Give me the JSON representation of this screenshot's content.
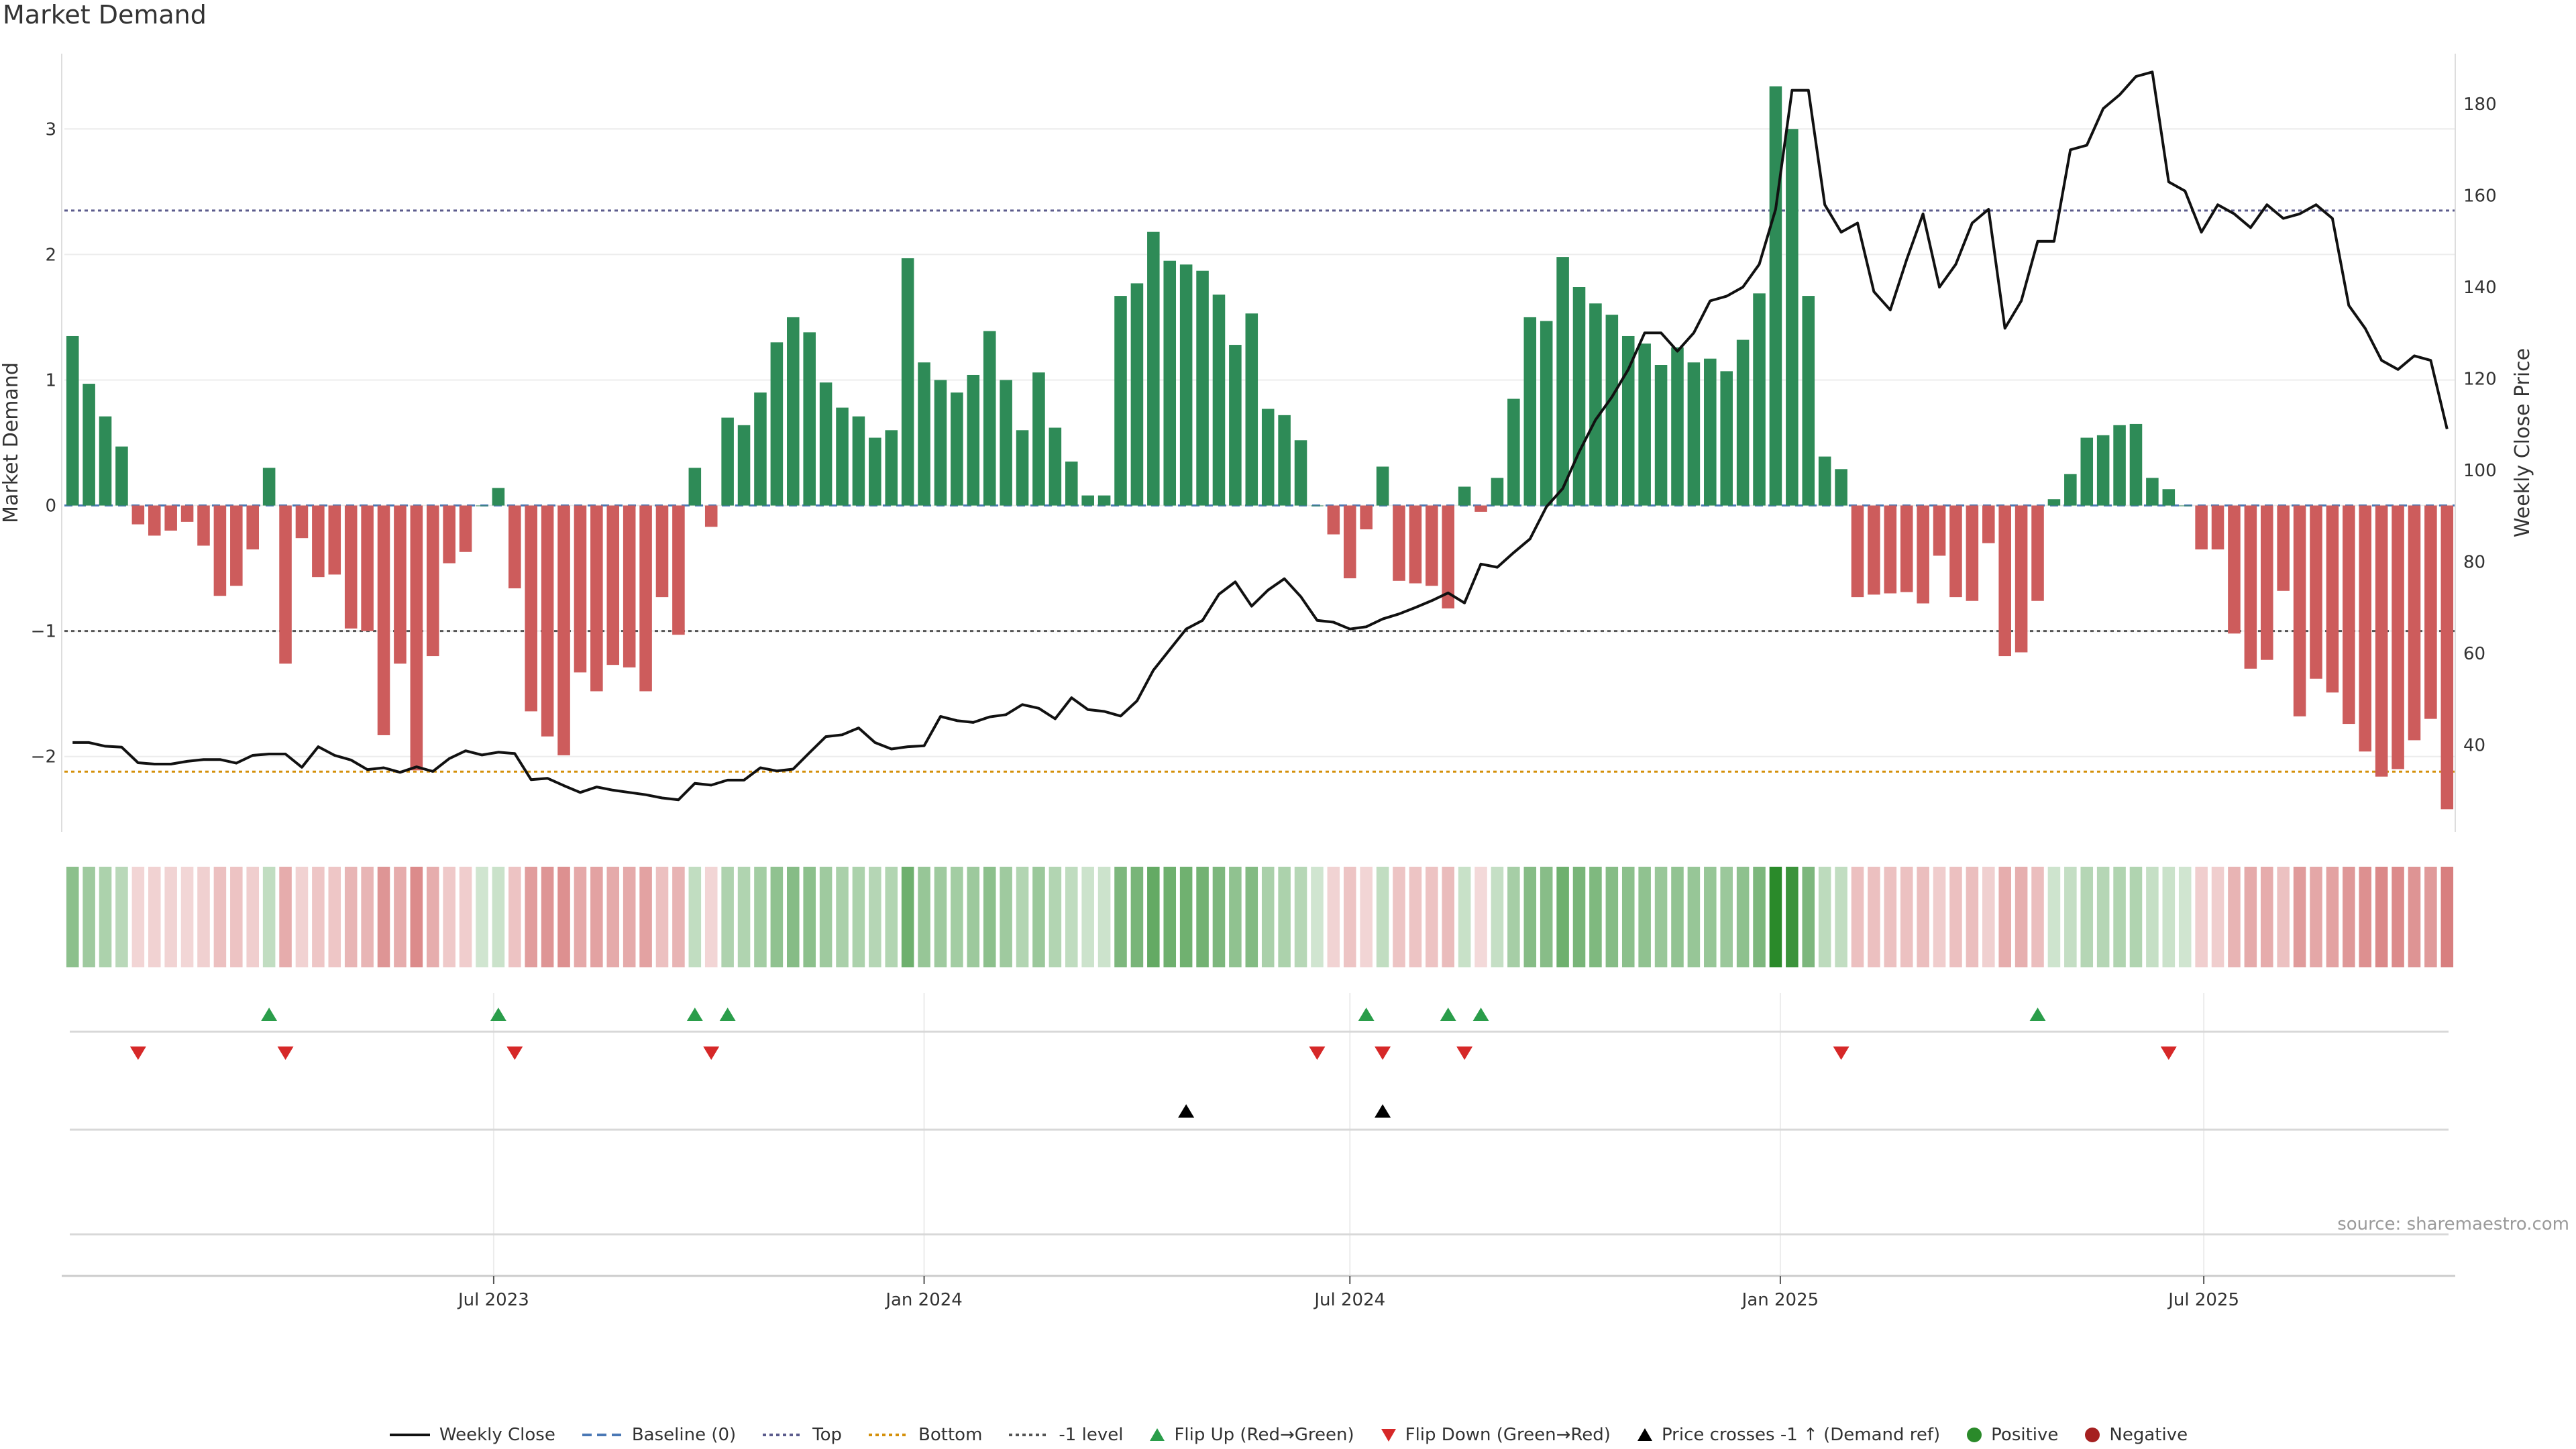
{
  "title": "Market Demand",
  "source": "source: sharemaestro.com",
  "colors": {
    "positive": "#2e8b57",
    "negative": "#cd5c5c",
    "price": "#111111",
    "top_line": "#5b5b8c",
    "bottom_line": "#d4900a",
    "minus1_line": "#555555",
    "flip_up": "#2a9d4a",
    "flip_down": "#d62828",
    "cross": "#000000",
    "pos_dot": "#2a8a2a",
    "neg_dot": "#a52020"
  },
  "legend": [
    {
      "label": "Weekly Close",
      "icon": "solid-line",
      "color": "#111111"
    },
    {
      "label": "Baseline (0)",
      "icon": "dashed-line",
      "color": "#4a78b5"
    },
    {
      "label": "Top",
      "icon": "dotted-line",
      "color": "#5b5b8c"
    },
    {
      "label": "Bottom",
      "icon": "dotted-line",
      "color": "#d4900a"
    },
    {
      "label": "-1 level",
      "icon": "dotted-line",
      "color": "#555555"
    },
    {
      "label": "Flip Up (Red→Green)",
      "icon": "triangle-up",
      "color": "#2a9d4a"
    },
    {
      "label": "Flip Down (Green→Red)",
      "icon": "triangle-down",
      "color": "#d62828"
    },
    {
      "label": "Price crosses -1 ↑ (Demand ref)",
      "icon": "triangle-up",
      "color": "#000000"
    },
    {
      "label": "Positive",
      "icon": "dot",
      "color": "#2a8a2a"
    },
    {
      "label": "Negative",
      "icon": "dot",
      "color": "#a52020"
    }
  ],
  "chart_data": {
    "type": "bar",
    "title": "Market Demand",
    "ylabel": "Market Demand",
    "y2label": "Weekly Close Price",
    "ylim": [
      -2.6,
      3.6
    ],
    "y2lim": [
      21,
      191
    ],
    "yticks": [
      -2,
      -1,
      0,
      1,
      2,
      3
    ],
    "y2ticks": [
      40,
      60,
      80,
      100,
      120,
      140,
      160,
      180
    ],
    "x_start": "2023-01-02",
    "x_interval": "weekly",
    "x_ticks": [
      {
        "label": "Jul 2023",
        "date": "2023-07-01"
      },
      {
        "label": "Jan 2024",
        "date": "2024-01-01"
      },
      {
        "label": "Jul 2024",
        "date": "2024-07-01"
      },
      {
        "label": "Jan 2025",
        "date": "2025-01-01"
      },
      {
        "label": "Jul 2025",
        "date": "2025-07-01"
      }
    ],
    "top_level": 2.35,
    "bottom_level": -2.12,
    "minus1_level": -1.0,
    "demand": [
      1.35,
      0.97,
      0.71,
      0.47,
      -0.15,
      -0.24,
      -0.2,
      -0.13,
      -0.32,
      -0.72,
      -0.64,
      -0.35,
      0.3,
      -1.26,
      -0.26,
      -0.57,
      -0.55,
      -0.98,
      -1.0,
      -1.83,
      -1.26,
      -2.11,
      -1.2,
      -0.46,
      -0.37,
      0.0,
      0.14,
      -0.66,
      -1.64,
      -1.84,
      -1.99,
      -1.33,
      -1.48,
      -1.27,
      -1.29,
      -1.48,
      -0.73,
      -1.03,
      0.3,
      -0.17,
      0.7,
      0.64,
      0.9,
      1.3,
      1.5,
      1.38,
      0.98,
      0.78,
      0.71,
      0.54,
      0.6,
      1.97,
      1.14,
      1.0,
      0.9,
      1.04,
      1.39,
      1.0,
      0.6,
      1.06,
      0.62,
      0.35,
      0.08,
      0.08,
      1.67,
      1.77,
      2.18,
      1.95,
      1.92,
      1.87,
      1.68,
      1.28,
      1.53,
      0.77,
      0.72,
      0.52,
      0.0,
      -0.23,
      -0.58,
      -0.19,
      0.31,
      -0.6,
      -0.62,
      -0.64,
      -0.82,
      0.15,
      -0.05,
      0.22,
      0.85,
      1.5,
      1.47,
      1.98,
      1.74,
      1.61,
      1.52,
      1.35,
      1.29,
      1.12,
      1.26,
      1.14,
      1.17,
      1.07,
      1.32,
      1.69,
      3.34,
      3.0,
      1.67,
      0.39,
      0.29,
      -0.73,
      -0.71,
      -0.7,
      -0.69,
      -0.78,
      -0.4,
      -0.73,
      -0.76,
      -0.3,
      -1.2,
      -1.17,
      -0.76,
      0.05,
      0.25,
      0.54,
      0.56,
      0.64,
      0.65,
      0.22,
      0.13,
      0.0,
      -0.35,
      -0.35,
      -1.02,
      -1.3,
      -1.23,
      -0.68,
      -1.68,
      -1.38,
      -1.49,
      -1.74,
      -1.96,
      -2.16,
      -2.1,
      -1.87,
      -1.7,
      -2.42
    ],
    "price": [
      40.5,
      40.5,
      39.7,
      39.5,
      36.1,
      35.8,
      35.8,
      36.4,
      36.8,
      36.8,
      36.0,
      37.7,
      38.0,
      38.0,
      35.1,
      39.6,
      37.7,
      36.7,
      34.6,
      35.0,
      34.0,
      35.2,
      34.2,
      37.0,
      38.7,
      37.8,
      38.4,
      38.1,
      32.4,
      32.7,
      31.1,
      29.6,
      30.8,
      30.1,
      29.6,
      29.1,
      28.4,
      28.0,
      31.6,
      31.2,
      32.3,
      32.3,
      35.0,
      34.3,
      34.7,
      38.3,
      41.8,
      42.2,
      43.7,
      40.5,
      39.1,
      39.6,
      39.8,
      46.2,
      45.3,
      44.9,
      46.1,
      46.6,
      48.8,
      48.0,
      45.7,
      50.3,
      47.7,
      47.3,
      46.3,
      49.6,
      56.3,
      60.8,
      65.3,
      67.2,
      72.9,
      75.6,
      70.3,
      73.8,
      76.3,
      72.4,
      67.2,
      66.8,
      65.3,
      65.8,
      67.5,
      68.6,
      70.0,
      71.5,
      73.2,
      71.0,
      79.5,
      78.8,
      82.0,
      85.0,
      92.0,
      96.0,
      104.0,
      111.0,
      116.0,
      122.0,
      130.0,
      130.0,
      126.0,
      130.0,
      137.0,
      138.0,
      140.0,
      145.0,
      157.0,
      183.0,
      183.0,
      158.0,
      152.0,
      154.0,
      139.0,
      135.0,
      146.0,
      156.0,
      140.0,
      145.0,
      154.0,
      157.0,
      131.0,
      137.0,
      150.0,
      150.0,
      170.0,
      171.0,
      179.0,
      182.0,
      186.0,
      187.0,
      163.0,
      161.0,
      152.0,
      158.0,
      156.0,
      153.0,
      158.0,
      155.0,
      156.0,
      158.0,
      155.0,
      136.0,
      131.0,
      124.0,
      122.0,
      125.0,
      124.0,
      109.0
    ],
    "flip_up_index": [
      12,
      26,
      38,
      40,
      79,
      84,
      86,
      120
    ],
    "flip_down_index": [
      4,
      13,
      27,
      39,
      76,
      80,
      85,
      108,
      128
    ],
    "price_cross_index": [
      68,
      80
    ]
  }
}
